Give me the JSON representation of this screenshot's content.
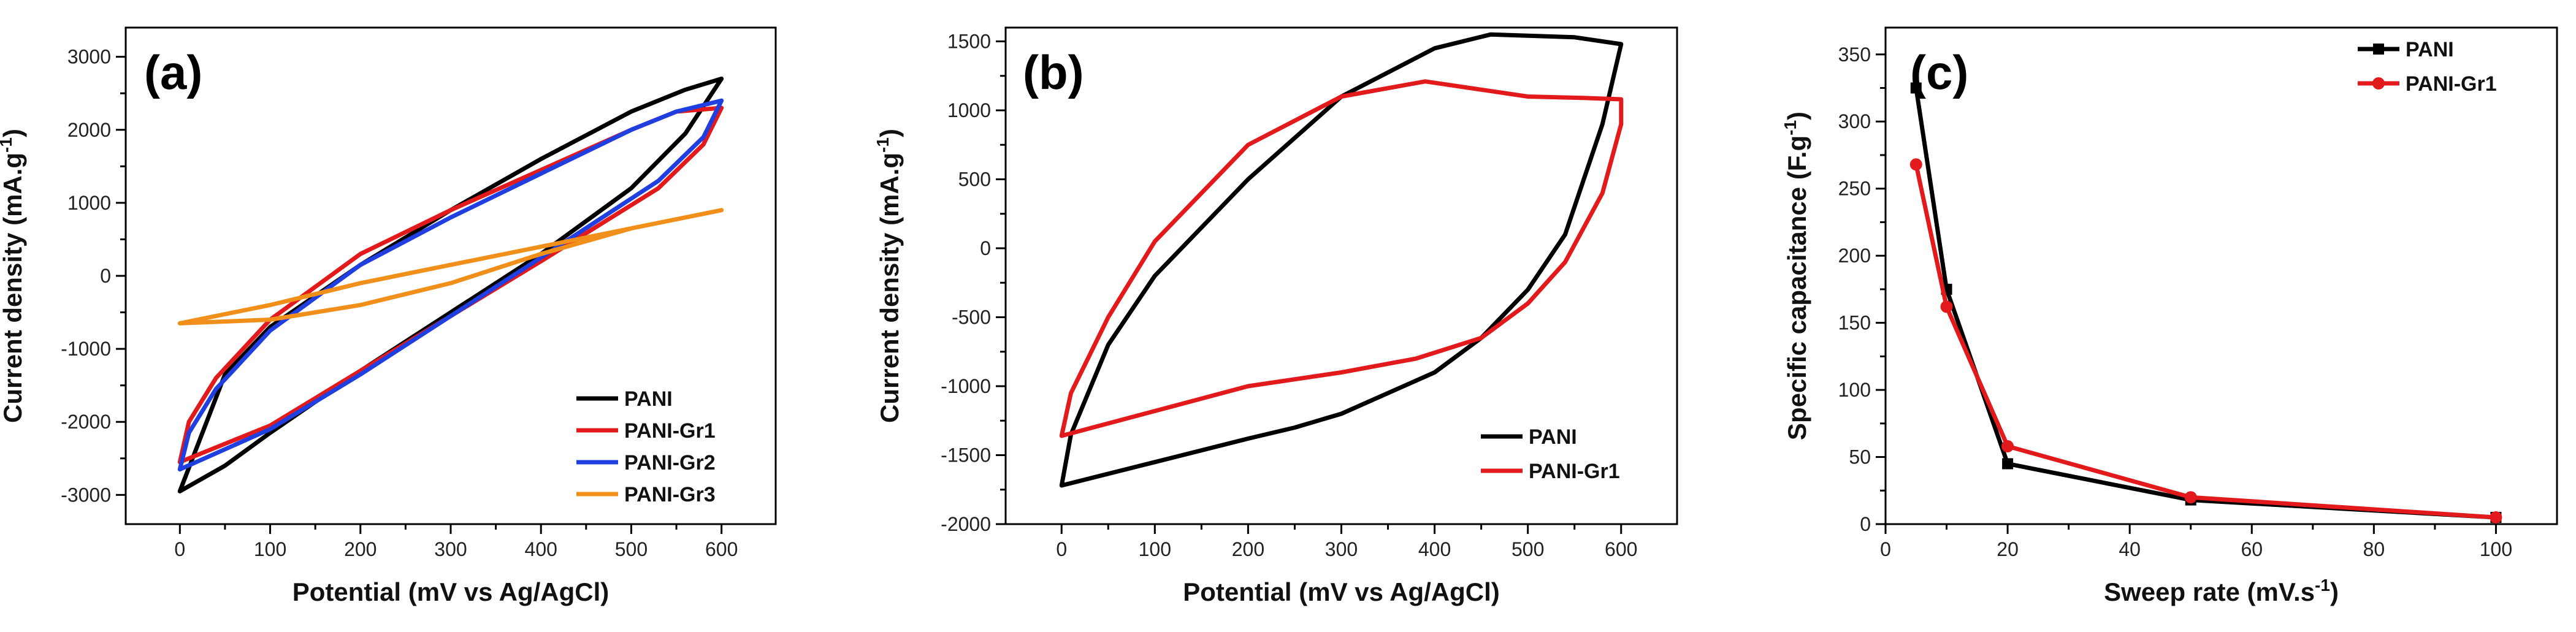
{
  "chart_data": [
    {
      "panel_label": "(a)",
      "type": "line",
      "xlabel": "Potential (mV vs Ag/AgCl)",
      "ylabel": "Current density (mA.g",
      "ylabel_sup": "-1",
      "ylabel_end": ")",
      "xlim": [
        -60,
        660
      ],
      "ylim": [
        -3400,
        3400
      ],
      "xticks": [
        0,
        100,
        200,
        300,
        400,
        500,
        600
      ],
      "xtick_labels": [
        "0",
        "100",
        "200",
        "300",
        "400",
        "500",
        "600"
      ],
      "yticks": [
        -3000,
        -2000,
        -1000,
        0,
        1000,
        2000,
        3000
      ],
      "ytick_labels": [
        "-3000",
        "-2000",
        "-1000",
        "0",
        "1000",
        "2000",
        "3000"
      ],
      "legend_position": "bottom-right",
      "series": [
        {
          "name": "PANI",
          "color": "#000000",
          "x": [
            0,
            50,
            100,
            200,
            300,
            400,
            500,
            560,
            600,
            560,
            500,
            400,
            300,
            200,
            100,
            50,
            0
          ],
          "y": [
            -2950,
            -2600,
            -2150,
            -1300,
            -500,
            300,
            1200,
            1950,
            2700,
            2550,
            2250,
            1600,
            900,
            150,
            -700,
            -1350,
            -2950
          ]
        },
        {
          "name": "PANI-Gr1",
          "color": "#e31a1c",
          "x": [
            0,
            10,
            40,
            100,
            200,
            300,
            400,
            500,
            550,
            600,
            580,
            530,
            400,
            300,
            200,
            100,
            0
          ],
          "y": [
            -2550,
            -2000,
            -1400,
            -600,
            300,
            900,
            1450,
            2000,
            2250,
            2300,
            1800,
            1200,
            200,
            -550,
            -1300,
            -2050,
            -2550
          ]
        },
        {
          "name": "PANI-Gr2",
          "color": "#1f3fe0",
          "x": [
            0,
            10,
            40,
            100,
            200,
            300,
            400,
            500,
            550,
            600,
            580,
            530,
            400,
            300,
            200,
            100,
            0
          ],
          "y": [
            -2650,
            -2150,
            -1550,
            -750,
            150,
            800,
            1400,
            2000,
            2250,
            2400,
            1900,
            1300,
            250,
            -550,
            -1350,
            -2100,
            -2650
          ]
        },
        {
          "name": "PANI-Gr3",
          "color": "#f0901a",
          "x": [
            0,
            100,
            200,
            300,
            400,
            500,
            600,
            500,
            400,
            300,
            200,
            100,
            0
          ],
          "y": [
            -650,
            -400,
            -100,
            150,
            400,
            650,
            900,
            650,
            300,
            -100,
            -400,
            -600,
            -650
          ]
        }
      ]
    },
    {
      "panel_label": "(b)",
      "type": "line",
      "xlabel": "Potential (mV vs Ag/AgCl)",
      "ylabel": "Current density (mA.g",
      "ylabel_sup": "-1",
      "ylabel_end": ")",
      "xlim": [
        -60,
        660
      ],
      "ylim": [
        -2000,
        1600
      ],
      "xticks": [
        0,
        100,
        200,
        300,
        400,
        500,
        600
      ],
      "xtick_labels": [
        "0",
        "100",
        "200",
        "300",
        "400",
        "500",
        "600"
      ],
      "yticks": [
        -2000,
        -1500,
        -1000,
        -500,
        0,
        500,
        1000,
        1500
      ],
      "ytick_labels": [
        "-2000",
        "-1500",
        "-1000",
        "-500",
        "0",
        "500",
        "1000",
        "1500"
      ],
      "legend_position": "bottom-right",
      "series": [
        {
          "name": "PANI",
          "color": "#000000",
          "x": [
            0,
            10,
            50,
            100,
            200,
            300,
            400,
            460,
            550,
            600,
            580,
            540,
            500,
            450,
            400,
            300,
            250,
            200,
            100,
            0
          ],
          "y": [
            -1720,
            -1350,
            -700,
            -200,
            500,
            1100,
            1450,
            1550,
            1530,
            1480,
            900,
            100,
            -300,
            -650,
            -900,
            -1200,
            -1300,
            -1380,
            -1550,
            -1720
          ]
        },
        {
          "name": "PANI-Gr1",
          "color": "#e31a1c",
          "x": [
            0,
            10,
            50,
            100,
            200,
            300,
            390,
            500,
            560,
            600,
            600,
            580,
            540,
            500,
            450,
            380,
            300,
            200,
            100,
            0
          ],
          "y": [
            -1360,
            -1050,
            -500,
            50,
            750,
            1100,
            1210,
            1100,
            1090,
            1080,
            900,
            400,
            -100,
            -400,
            -650,
            -800,
            -900,
            -1000,
            -1180,
            -1360
          ]
        }
      ]
    },
    {
      "panel_label": "(c)",
      "type": "line",
      "xlabel": "Sweep rate (mV.s",
      "xlabel_sup": "-1",
      "xlabel_end": ")",
      "ylabel": "Specific capacitance (F.g",
      "ylabel_sup": "-1",
      "ylabel_end": ")",
      "xlim": [
        0,
        110
      ],
      "ylim": [
        0,
        370
      ],
      "xticks": [
        0,
        20,
        40,
        60,
        80,
        100
      ],
      "xtick_labels": [
        "0",
        "20",
        "40",
        "60",
        "80",
        "100"
      ],
      "yticks": [
        0,
        50,
        100,
        150,
        200,
        250,
        300,
        350
      ],
      "ytick_labels": [
        "0",
        "50",
        "100",
        "150",
        "200",
        "250",
        "300",
        "350"
      ],
      "legend_position": "top-right",
      "series": [
        {
          "name": "PANI",
          "color": "#000000",
          "marker": "square",
          "x": [
            5,
            10,
            20,
            50,
            100
          ],
          "y": [
            325,
            175,
            45,
            18,
            5
          ]
        },
        {
          "name": "PANI-Gr1",
          "color": "#e31a1c",
          "marker": "circle",
          "x": [
            5,
            10,
            20,
            50,
            100
          ],
          "y": [
            268,
            162,
            58,
            20,
            5
          ]
        }
      ]
    }
  ]
}
